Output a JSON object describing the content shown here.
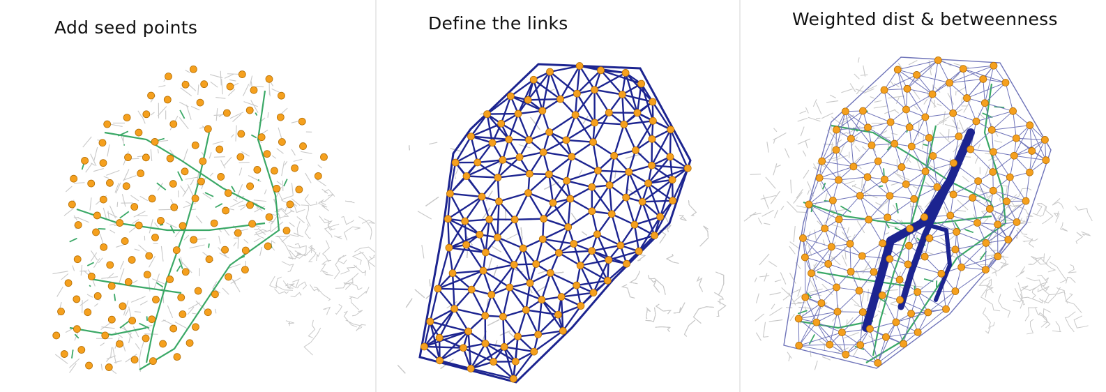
{
  "panels": [
    {
      "id": "seed-points",
      "title": "Add seed points"
    },
    {
      "id": "links",
      "title": "Define the links"
    },
    {
      "id": "betweenness",
      "title": "Weighted dist & betweenness"
    }
  ],
  "colors": {
    "road_network": "#c8c8c8",
    "main_roads": "#3aa866",
    "seed_point": "#f5a01e",
    "seed_point_stroke": "#b36d00",
    "link": "#1c2490",
    "link_light": "#6d72b8"
  }
}
